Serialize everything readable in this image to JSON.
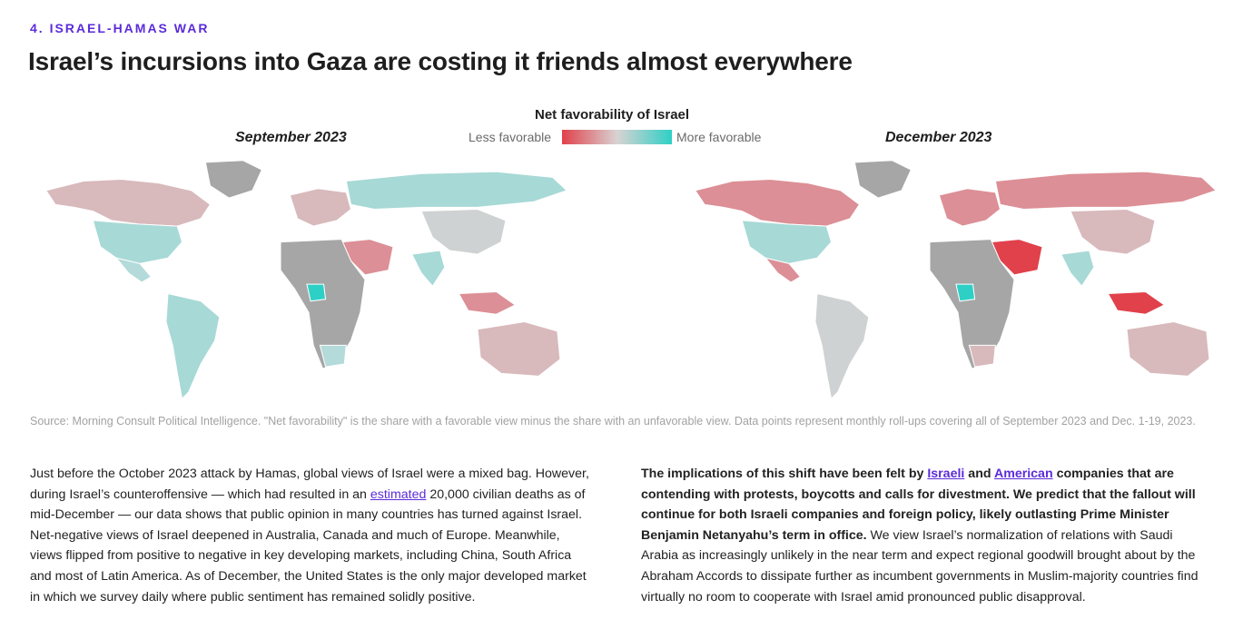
{
  "header": {
    "eyebrow": "4. ISRAEL-HAMAS WAR",
    "title": "Israel’s incursions into Gaza are costing it friends almost everywhere"
  },
  "legend": {
    "title": "Net favorability of Israel",
    "low_label": "Less favorable",
    "high_label": "More favorable",
    "colors": {
      "low": "#e0414b",
      "mid": "#d9d2d2",
      "high": "#2ed0c6",
      "no_data": "#a6a6a6"
    }
  },
  "maps": {
    "left": {
      "label": "September 2023",
      "regions": {
        "north_america_north": "slightly_unfavorable",
        "greenland": "no_data",
        "usa": "favorable",
        "mexico": "slightly_favorable",
        "south_america": "favorable",
        "western_europe": "slightly_unfavorable",
        "russia": "favorable",
        "china": "neutral",
        "india": "favorable",
        "middle_east": "unfavorable",
        "africa": "no_data",
        "nigeria": "very_favorable",
        "south_africa": "slightly_favorable",
        "australia": "slightly_unfavorable",
        "southeast_asia": "unfavorable"
      }
    },
    "right": {
      "label": "December 2023",
      "regions": {
        "north_america_north": "unfavorable",
        "greenland": "no_data",
        "usa": "favorable",
        "mexico": "unfavorable",
        "south_america": "neutral",
        "western_europe": "unfavorable",
        "russia": "unfavorable",
        "china": "slightly_unfavorable",
        "india": "favorable",
        "middle_east": "very_unfavorable",
        "africa": "no_data",
        "nigeria": "very_favorable",
        "south_africa": "slightly_unfavorable",
        "australia": "slightly_unfavorable",
        "southeast_asia": "very_unfavorable"
      }
    }
  },
  "source": "Source: Morning Consult Political Intelligence. \"Net favorability\" is the share with a favorable view minus the share with an unfavorable view. Data points represent monthly roll-ups covering all of September 2023 and Dec. 1-19, 2023.",
  "body_left": {
    "p1": "Just before the October 2023 attack by Hamas, global views of Israel were a mixed bag. However, during Israel’s counteroffensive — which had resulted in an ",
    "link_estimated": "estimated",
    "p2": " 20,000 civilian deaths as of mid-December — our data shows that public opinion in many countries has turned against Israel. Net-negative views of Israel deepened in Australia, Canada and much of Europe. Meanwhile, views flipped from positive to negative in key developing markets, including China, South Africa and most of Latin America. As of December, the United States is the only major developed market in which we survey daily where public sentiment has remained solidly positive."
  },
  "body_right": {
    "b1": "The implications of this shift have been felt by ",
    "link_israeli": "Israeli",
    "b2": " and ",
    "link_american": "American",
    "b3": " companies that are contending with protests, boycotts and calls for divestment. We predict that the fallout will continue for both Israeli companies and foreign policy, likely outlasting Prime Minister Benjamin Netanyahu’s term in office.",
    "p": " We view Israel’s normalization of relations with Saudi Arabia as increasingly unlikely in the near term and expect regional goodwill brought about by the Abraham Accords to dissipate further as incumbent governments in Muslim-majority countries find virtually no room to cooperate with Israel amid pronounced public disapproval."
  }
}
